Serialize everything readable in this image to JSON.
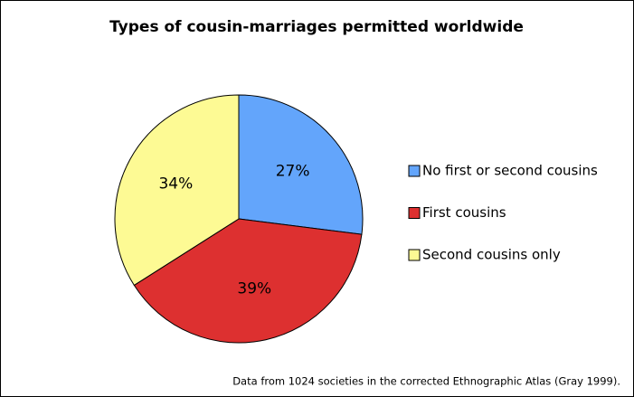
{
  "chart_data": {
    "type": "pie",
    "title": "Types of cousin-marriages permitted worldwide",
    "categories": [
      "No first or second cousins",
      "First cousins",
      "Second cousins only"
    ],
    "values": [
      27,
      39,
      34
    ],
    "value_labels": [
      "27%",
      "39%",
      "34%"
    ],
    "colors": [
      "#63a5fb",
      "#dd3030",
      "#fdfa94"
    ],
    "legend": "right",
    "note": "Data from 1024 societies in the corrected Ethnographic Atlas (Gray 1999)."
  }
}
